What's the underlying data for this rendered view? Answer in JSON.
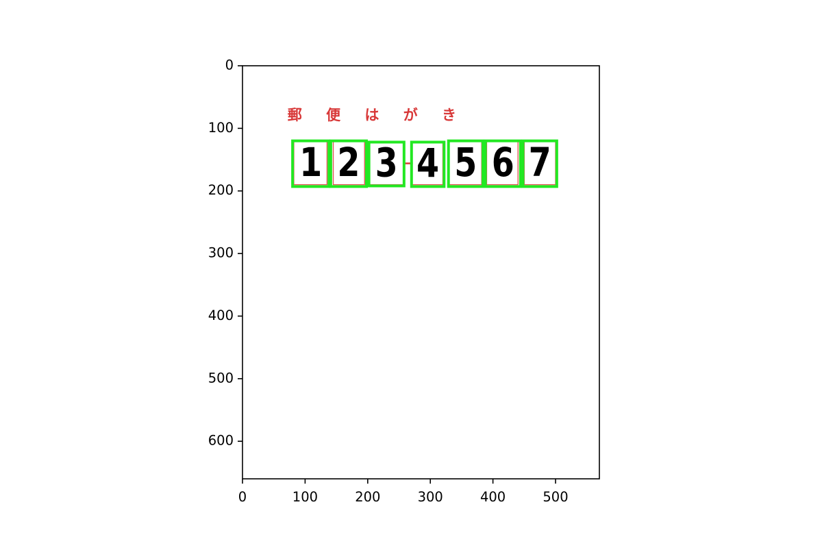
{
  "chart_data": {
    "type": "image",
    "title": "",
    "xlabel": "",
    "ylabel": "",
    "xlim": [
      0,
      570
    ],
    "ylim": [
      660,
      0
    ],
    "x_ticks": [
      0,
      100,
      200,
      300,
      400,
      500
    ],
    "y_ticks": [
      0,
      100,
      200,
      300,
      400,
      500,
      600
    ],
    "grid": false,
    "image_content": {
      "header_text": "郵 便 は が き",
      "header_color": "#d83838",
      "hyphen": {
        "x": [
          258,
          272
        ],
        "y": 156
      },
      "red_boxes": [
        {
          "x": [
            82,
            135
          ],
          "y": [
            121,
            190
          ]
        },
        {
          "x": [
            145,
            195
          ],
          "y": [
            121,
            190
          ]
        },
        {
          "x": [
            200,
            258
          ],
          "y": [
            121,
            190
          ]
        },
        {
          "x": [
            271,
            320
          ],
          "y": [
            121,
            190
          ]
        },
        {
          "x": [
            330,
            382
          ],
          "y": [
            121,
            190
          ]
        },
        {
          "x": [
            390,
            440
          ],
          "y": [
            121,
            190
          ]
        },
        {
          "x": [
            450,
            500
          ],
          "y": [
            121,
            190
          ]
        }
      ],
      "digits": [
        {
          "label": "1",
          "box": {
            "x": [
              80,
              138
            ],
            "y": [
              120,
              193
            ]
          }
        },
        {
          "label": "2",
          "box": {
            "x": [
              141,
              198
            ],
            "y": [
              120,
              193
            ]
          }
        },
        {
          "label": "3",
          "box": {
            "x": [
              202,
              258
            ],
            "y": [
              122,
              192
            ]
          }
        },
        {
          "label": "4",
          "box": {
            "x": [
              270,
              322
            ],
            "y": [
              122,
              193
            ]
          }
        },
        {
          "label": "5",
          "box": {
            "x": [
              329,
              384
            ],
            "y": [
              120,
              193
            ]
          }
        },
        {
          "label": "6",
          "box": {
            "x": [
              388,
              444
            ],
            "y": [
              120,
              193
            ]
          }
        },
        {
          "label": "7",
          "box": {
            "x": [
              448,
              502
            ],
            "y": [
              120,
              193
            ]
          }
        }
      ],
      "box_color": "#22e822",
      "red_box_color": "#e05050"
    }
  }
}
